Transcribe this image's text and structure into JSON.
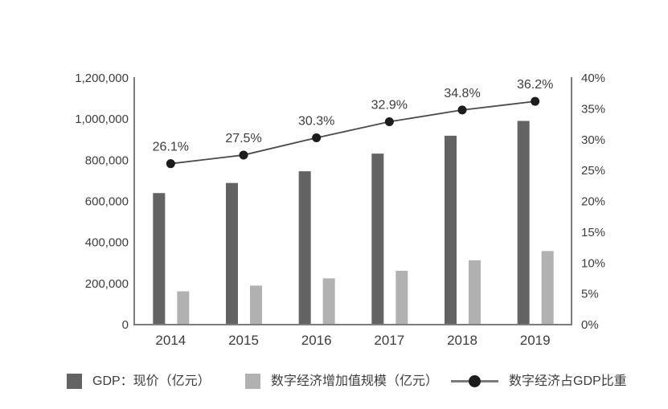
{
  "chart_data": {
    "type": "combo",
    "title": "",
    "categories": [
      "2014",
      "2015",
      "2016",
      "2017",
      "2018",
      "2019"
    ],
    "series": [
      {
        "name": "GDP：现价（亿元）",
        "type": "bar",
        "axis": "left",
        "color": "#636363",
        "values": [
          640000,
          689000,
          746000,
          832000,
          919000,
          991000
        ]
      },
      {
        "name": "数字经济增加值规模（亿元）",
        "type": "bar",
        "axis": "left",
        "color": "#b1b1b1",
        "values": [
          162000,
          190000,
          225000,
          262000,
          313000,
          358000
        ]
      },
      {
        "name": "数字经济占GDP比重",
        "type": "line",
        "axis": "right",
        "color": "#4a4a4a",
        "marker_color": "#1c1c1c",
        "values": [
          26.1,
          27.5,
          30.3,
          32.9,
          34.8,
          36.2
        ],
        "point_labels": [
          "26.1%",
          "27.5%",
          "30.3%",
          "32.9%",
          "34.8%",
          "36.2%"
        ]
      }
    ],
    "left_axis": {
      "min": 0,
      "max": 1200000,
      "step": 200000,
      "tick_labels": [
        "0",
        "200,000",
        "400,000",
        "600,000",
        "800,000",
        "1,000,000",
        "1,200,000"
      ]
    },
    "right_axis": {
      "min": 0,
      "max": 40,
      "step": 5,
      "tick_labels": [
        "0%",
        "5%",
        "10%",
        "15%",
        "20%",
        "25%",
        "30%",
        "35%",
        "40%"
      ]
    },
    "grid": false,
    "legend_position": "bottom"
  },
  "legend": {
    "items": [
      {
        "label": "GDP：现价（亿元）",
        "swatch": "square",
        "color": "#636363"
      },
      {
        "label": "数字经济增加值规模（亿元）",
        "swatch": "square",
        "color": "#b1b1b1"
      },
      {
        "label": "数字经济占GDP比重",
        "swatch": "line-dot",
        "line_color": "#7a7a7a",
        "dot_color": "#1c1c1c"
      }
    ]
  },
  "colors": {
    "background": "#ffffff",
    "axis_line": "#7d7d7d",
    "text": "#3c3c3c"
  }
}
